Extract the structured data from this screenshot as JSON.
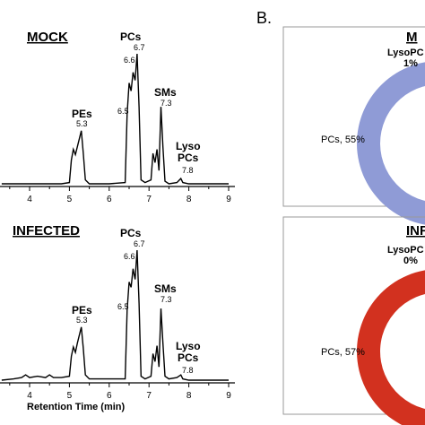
{
  "panel_b_label": "B.",
  "chromatograms": [
    {
      "title": "MOCK",
      "xlabel": "Retention Time (min)",
      "x_ticks": [
        "4",
        "5",
        "6",
        "7",
        "8",
        "9"
      ],
      "peaks": [
        {
          "name": "PEs",
          "value": "5.3"
        },
        {
          "name": "PCs",
          "value": "6.7"
        },
        {
          "name": "SMs",
          "value": "7.3"
        },
        {
          "name": "Lyso\nPCs",
          "value": "7.8"
        }
      ],
      "extra_labels": [
        "6.6",
        "6.5"
      ]
    },
    {
      "title": "INFECTED",
      "xlabel": "Retention Time (min)",
      "x_ticks": [
        "4",
        "5",
        "6",
        "7",
        "8",
        "9"
      ],
      "peaks": [
        {
          "name": "PEs",
          "value": "5.3"
        },
        {
          "name": "PCs",
          "value": "6.7"
        },
        {
          "name": "SMs",
          "value": "7.3"
        },
        {
          "name": "Lyso\nPCs",
          "value": "7.8"
        }
      ],
      "extra_labels": [
        "6.6",
        "6.5"
      ]
    }
  ],
  "chart_data": [
    {
      "type": "line",
      "title": "MOCK",
      "xlabel": "Retention Time (min)",
      "ylabel": "",
      "xlim": [
        3.3,
        9
      ],
      "ylim": [
        0,
        1
      ],
      "x": [
        3.3,
        4.0,
        4.5,
        4.8,
        5.0,
        5.05,
        5.1,
        5.15,
        5.2,
        5.25,
        5.3,
        5.35,
        5.4,
        5.5,
        6.0,
        6.4,
        6.45,
        6.5,
        6.55,
        6.6,
        6.65,
        6.7,
        6.75,
        6.8,
        6.9,
        7.05,
        7.1,
        7.15,
        7.2,
        7.25,
        7.3,
        7.35,
        7.4,
        7.5,
        7.7,
        7.8,
        7.85,
        8.0,
        9.0
      ],
      "series": [
        {
          "values": [
            0.02,
            0.02,
            0.02,
            0.02,
            0.03,
            0.2,
            0.28,
            0.24,
            0.3,
            0.36,
            0.42,
            0.25,
            0.05,
            0.02,
            0.02,
            0.03,
            0.55,
            0.78,
            0.72,
            0.86,
            0.8,
            1.0,
            0.6,
            0.05,
            0.03,
            0.05,
            0.25,
            0.18,
            0.28,
            0.12,
            0.6,
            0.3,
            0.04,
            0.02,
            0.03,
            0.06,
            0.03,
            0.02,
            0.02
          ]
        }
      ]
    },
    {
      "type": "line",
      "title": "INFECTED",
      "xlabel": "Retention Time (min)",
      "ylabel": "",
      "xlim": [
        3.3,
        9
      ],
      "ylim": [
        0,
        1
      ],
      "x": [
        3.3,
        3.6,
        3.8,
        3.9,
        4.0,
        4.2,
        4.4,
        4.5,
        4.6,
        4.8,
        5.0,
        5.05,
        5.1,
        5.15,
        5.2,
        5.25,
        5.3,
        5.35,
        5.4,
        5.5,
        6.0,
        6.4,
        6.45,
        6.5,
        6.55,
        6.6,
        6.65,
        6.7,
        6.75,
        6.8,
        6.9,
        7.05,
        7.1,
        7.15,
        7.2,
        7.25,
        7.3,
        7.35,
        7.4,
        7.5,
        7.7,
        7.8,
        7.85,
        8.0,
        9.0
      ],
      "series": [
        {
          "values": [
            0.02,
            0.03,
            0.04,
            0.06,
            0.04,
            0.05,
            0.04,
            0.06,
            0.04,
            0.04,
            0.05,
            0.2,
            0.27,
            0.23,
            0.3,
            0.36,
            0.42,
            0.26,
            0.06,
            0.03,
            0.03,
            0.03,
            0.55,
            0.76,
            0.72,
            0.86,
            0.78,
            1.0,
            0.6,
            0.05,
            0.03,
            0.05,
            0.22,
            0.16,
            0.28,
            0.12,
            0.56,
            0.3,
            0.05,
            0.03,
            0.04,
            0.06,
            0.03,
            0.02,
            0.02
          ]
        }
      ]
    },
    {
      "type": "pie",
      "title": "M",
      "labels": [
        "LysoPC",
        "PCs"
      ],
      "label_texts": [
        "LysoPC",
        "PCs, 55%"
      ],
      "values": [
        1,
        55
      ],
      "value_texts": [
        "1%"
      ],
      "color": "#8f9bd6"
    },
    {
      "type": "pie",
      "title": "INF",
      "labels": [
        "LysoPC",
        "PCs"
      ],
      "label_texts": [
        "LysoPC",
        "PCs, 57%"
      ],
      "values": [
        0,
        57
      ],
      "value_texts": [
        "0%"
      ],
      "color": "#d2311f"
    }
  ]
}
